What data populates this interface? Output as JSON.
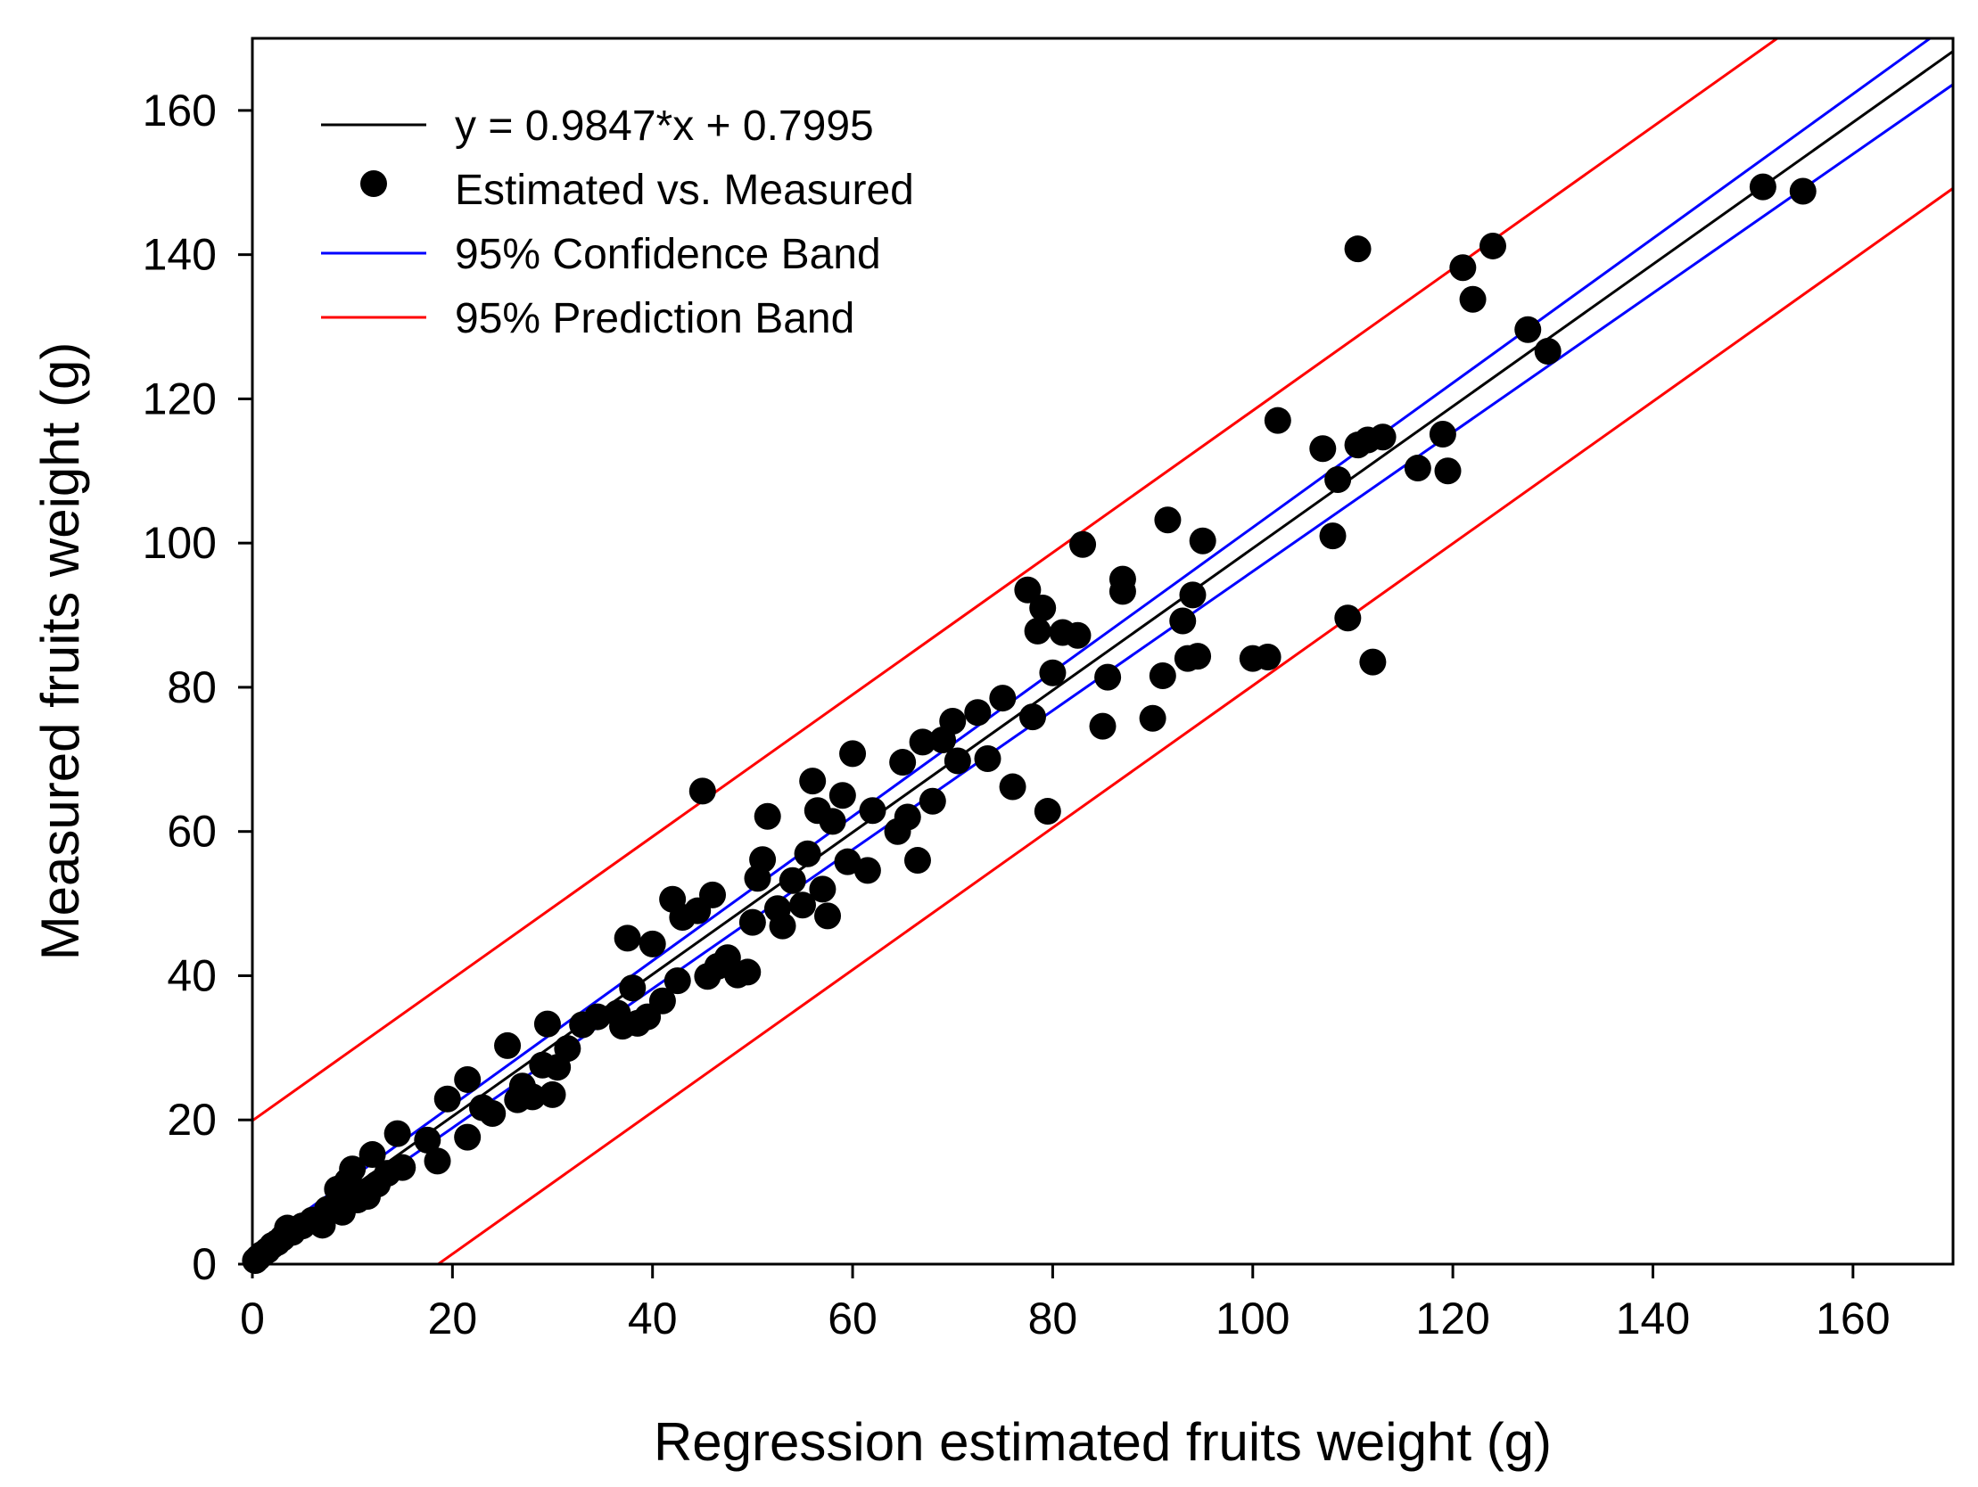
{
  "chart_data": {
    "type": "scatter",
    "xlabel": "Regression estimated fruits weight (g)",
    "ylabel": "Measured fruits weight (g)",
    "xlim": [
      0,
      170
    ],
    "ylim": [
      0,
      170
    ],
    "xticks": [
      0,
      20,
      40,
      60,
      80,
      100,
      120,
      140,
      160
    ],
    "yticks": [
      0,
      20,
      40,
      60,
      80,
      100,
      120,
      140,
      160
    ],
    "grid": false,
    "legend_position": "top-left",
    "legend": [
      {
        "label": "y = 0.9847*x + 0.7995",
        "kind": "line",
        "color": "#000000"
      },
      {
        "label": "Estimated vs. Measured",
        "kind": "marker",
        "color": "#000000"
      },
      {
        "label": "95% Confidence Band",
        "kind": "line",
        "color": "#0000ff"
      },
      {
        "label": "95% Prediction Band",
        "kind": "line",
        "color": "#ff0000"
      }
    ],
    "regression": {
      "slope": 0.9847,
      "intercept": 0.7995,
      "x_range": [
        0,
        170
      ]
    },
    "confidence_band": {
      "upper": [
        [
          0,
          2.0
        ],
        [
          170,
          172.3
        ]
      ],
      "lower": [
        [
          0,
          -0.4
        ],
        [
          170,
          163.6
        ]
      ]
    },
    "prediction_band": {
      "upper": [
        [
          0,
          19.9
        ],
        [
          170,
          187.3
        ]
      ],
      "lower": [
        [
          0,
          -18.3
        ],
        [
          170,
          149.2
        ]
      ]
    },
    "points": [
      [
        0.3,
        0.5
      ],
      [
        0.6,
        0.9
      ],
      [
        1.0,
        1.4
      ],
      [
        1.5,
        1.9
      ],
      [
        2.0,
        2.6
      ],
      [
        2.5,
        3.0
      ],
      [
        3.0,
        3.6
      ],
      [
        3.5,
        5.0
      ],
      [
        4.0,
        4.4
      ],
      [
        5.0,
        5.3
      ],
      [
        6.0,
        6.1
      ],
      [
        7.0,
        5.4
      ],
      [
        7.5,
        7.6
      ],
      [
        8.5,
        10.4
      ],
      [
        9.0,
        7.2
      ],
      [
        9.5,
        11.5
      ],
      [
        10.0,
        13.2
      ],
      [
        10.5,
        8.9
      ],
      [
        11.0,
        10.0
      ],
      [
        11.5,
        9.4
      ],
      [
        12.0,
        15.2
      ],
      [
        12.5,
        11.1
      ],
      [
        13.5,
        12.6
      ],
      [
        14.5,
        18.1
      ],
      [
        15.0,
        13.4
      ],
      [
        17.5,
        17.2
      ],
      [
        18.5,
        14.3
      ],
      [
        19.5,
        22.9
      ],
      [
        21.5,
        17.6
      ],
      [
        21.5,
        25.6
      ],
      [
        23.0,
        21.7
      ],
      [
        24.0,
        20.9
      ],
      [
        25.5,
        30.3
      ],
      [
        26.5,
        22.8
      ],
      [
        27.0,
        24.7
      ],
      [
        28.0,
        23.2
      ],
      [
        29.0,
        27.6
      ],
      [
        29.5,
        33.3
      ],
      [
        30.0,
        23.5
      ],
      [
        30.5,
        27.3
      ],
      [
        31.5,
        29.9
      ],
      [
        33.0,
        33.2
      ],
      [
        34.5,
        34.3
      ],
      [
        36.5,
        34.8
      ],
      [
        37.0,
        33.0
      ],
      [
        37.5,
        45.2
      ],
      [
        38.0,
        38.3
      ],
      [
        38.5,
        33.4
      ],
      [
        39.5,
        34.3
      ],
      [
        40.0,
        44.4
      ],
      [
        41.0,
        36.5
      ],
      [
        42.0,
        50.6
      ],
      [
        42.5,
        39.3
      ],
      [
        43.0,
        48.1
      ],
      [
        44.5,
        49.0
      ],
      [
        45.0,
        65.6
      ],
      [
        45.5,
        39.9
      ],
      [
        46.0,
        51.2
      ],
      [
        46.5,
        41.3
      ],
      [
        47.5,
        42.5
      ],
      [
        48.5,
        40.1
      ],
      [
        49.5,
        40.5
      ],
      [
        50.0,
        47.4
      ],
      [
        50.5,
        53.5
      ],
      [
        51.0,
        56.1
      ],
      [
        51.5,
        62.1
      ],
      [
        52.5,
        49.3
      ],
      [
        53.0,
        46.9
      ],
      [
        54.0,
        53.2
      ],
      [
        55.0,
        49.8
      ],
      [
        55.5,
        56.9
      ],
      [
        56.0,
        67.0
      ],
      [
        56.5,
        62.9
      ],
      [
        57.0,
        52.0
      ],
      [
        57.5,
        48.3
      ],
      [
        58.0,
        61.4
      ],
      [
        59.0,
        65.0
      ],
      [
        59.5,
        55.8
      ],
      [
        60.0,
        70.8
      ],
      [
        61.5,
        54.6
      ],
      [
        62.0,
        62.9
      ],
      [
        64.5,
        60.0
      ],
      [
        65.0,
        69.6
      ],
      [
        65.5,
        62.0
      ],
      [
        66.5,
        56.0
      ],
      [
        67.0,
        72.4
      ],
      [
        68.0,
        64.2
      ],
      [
        69.0,
        72.7
      ],
      [
        70.0,
        75.3
      ],
      [
        70.5,
        69.8
      ],
      [
        72.5,
        76.5
      ],
      [
        73.5,
        70.1
      ],
      [
        75.0,
        78.5
      ],
      [
        76.0,
        66.2
      ],
      [
        77.5,
        93.5
      ],
      [
        78.0,
        75.9
      ],
      [
        78.5,
        87.8
      ],
      [
        79.0,
        91.0
      ],
      [
        79.5,
        62.8
      ],
      [
        80.0,
        82.0
      ],
      [
        81.0,
        87.6
      ],
      [
        82.5,
        87.2
      ],
      [
        83.0,
        99.8
      ],
      [
        85.0,
        74.6
      ],
      [
        85.5,
        81.4
      ],
      [
        87.0,
        95.0
      ],
      [
        87.0,
        93.3
      ],
      [
        90.0,
        75.7
      ],
      [
        91.0,
        81.6
      ],
      [
        91.5,
        103.2
      ],
      [
        93.0,
        89.2
      ],
      [
        93.5,
        84.0
      ],
      [
        94.0,
        92.8
      ],
      [
        94.5,
        84.3
      ],
      [
        95.0,
        100.3
      ],
      [
        100.0,
        84.0
      ],
      [
        101.5,
        84.2
      ],
      [
        102.5,
        117.0
      ],
      [
        107.0,
        113.1
      ],
      [
        108.0,
        101.0
      ],
      [
        108.5,
        108.8
      ],
      [
        109.5,
        89.6
      ],
      [
        110.5,
        113.6
      ],
      [
        110.5,
        140.8
      ],
      [
        111.5,
        114.3
      ],
      [
        112.0,
        83.5
      ],
      [
        113.0,
        114.7
      ],
      [
        116.5,
        110.4
      ],
      [
        119.0,
        115.1
      ],
      [
        119.5,
        110.0
      ],
      [
        121.0,
        138.2
      ],
      [
        122.0,
        133.8
      ],
      [
        124.0,
        141.2
      ],
      [
        127.5,
        129.6
      ],
      [
        129.5,
        126.6
      ],
      [
        151.0,
        149.4
      ],
      [
        155.0,
        148.8
      ]
    ]
  }
}
